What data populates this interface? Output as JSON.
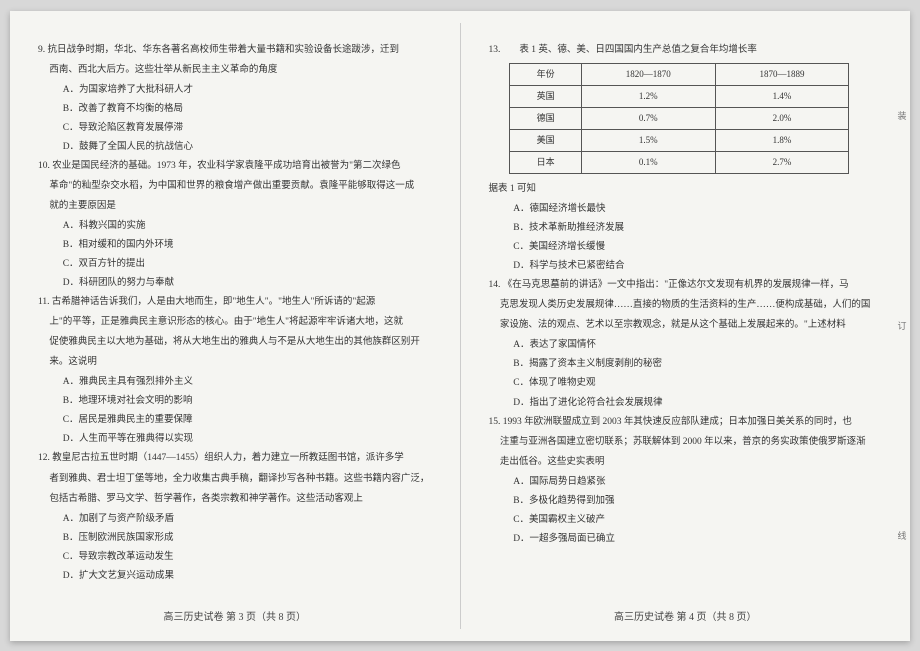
{
  "left": {
    "q9": {
      "stem": "9. 抗日战争时期，华北、华东各著名高校师生带着大量书籍和实验设备长途跋涉，迁到",
      "cont": "西南、西北大后方。这些壮举从新民主主义革命的角度",
      "A": "A．为国家培养了大批科研人才",
      "B": "B．改善了教育不均衡的格局",
      "C": "C．导致沦陷区教育发展停滞",
      "D": "D．鼓舞了全国人民的抗战信心"
    },
    "q10": {
      "stem": "10. 农业是国民经济的基础。1973 年，农业科学家袁隆平成功培育出被誉为\"第二次绿色",
      "cont1": "革命\"的籼型杂交水稻，为中国和世界的粮食增产做出重要贡献。袁隆平能够取得这一成",
      "cont2": "就的主要原因是",
      "A": "A．科教兴国的实施",
      "B": "B．相对缓和的国内外环境",
      "C": "C．双百方针的提出",
      "D": "D．科研团队的努力与奉献"
    },
    "q11": {
      "stem": "11. 古希腊神话告诉我们，人是由大地而生，即\"地生人\"。\"地生人\"所诉请的\"起源",
      "cont1": "上\"的平等，正是雅典民主意识形态的核心。由于\"地生人\"将起源牢牢诉诸大地，这就",
      "cont2": "促使雅典民主以大地为基础，将从大地生出的雅典人与不是从大地生出的其他族群区别开",
      "cont3": "来。这说明",
      "A": "A．雅典民主具有强烈排外主义",
      "B": "B．地理环境对社会文明的影响",
      "C": "C．居民是雅典民主的重要保障",
      "D": "D．人生而平等在雅典得以实现"
    },
    "q12": {
      "stem": "12. 教皇尼古拉五世时期（1447—1455）组织人力，着力建立一所教廷图书馆，派许多学",
      "cont1": "者到雅典、君士坦丁堡等地，全力收集古典手稿，翻译抄写各种书籍。这些书籍内容广泛，",
      "cont2": "包括古希腊、罗马文学、哲学著作，各类宗教和神学著作。这些活动客观上",
      "A": "A．加剧了与资产阶级矛盾",
      "B": "B．压制欧洲民族国家形成",
      "C": "C．导致宗教改革运动发生",
      "D": "D．扩大文艺复兴运动成果"
    },
    "footer": "高三历史试卷 第 3 页（共 8 页）"
  },
  "right": {
    "q13": {
      "stem": "13.",
      "title": "表 1 英、德、美、日四国国内生产总值之复合年均增长率",
      "table": {
        "columns": [
          "年份",
          "1820—1870",
          "1870—1889"
        ],
        "rows": [
          [
            "英国",
            "1.2%",
            "1.4%"
          ],
          [
            "德国",
            "0.7%",
            "2.0%"
          ],
          [
            "美国",
            "1.5%",
            "1.8%"
          ],
          [
            "日本",
            "0.1%",
            "2.7%"
          ]
        ]
      },
      "lead": "据表 1 可知",
      "A": "A．德国经济增长最快",
      "B": "B．技术革新助推经济发展",
      "C": "C．美国经济增长缓慢",
      "D": "D．科学与技术已紧密结合"
    },
    "q14": {
      "stem": "14. 《在马克思墓前的讲话》一文中指出：\"正像达尔文发现有机界的发展规律一样，马",
      "cont1": "克思发现人类历史发展规律……直接的物质的生活资料的生产……便构成基础，人们的国",
      "cont2": "家设施、法的观点、艺术以至宗教观念，就是从这个基础上发展起来的。\"上述材料",
      "A": "A．表达了家国情怀",
      "B": "B．揭露了资本主义制度剥削的秘密",
      "C": "C．体现了唯物史观",
      "D": "D．指出了进化论符合社会发展规律"
    },
    "q15": {
      "stem": "15. 1993 年欧洲联盟成立到 2003 年其快速反应部队建成；日本加强日美关系的同时，也",
      "cont1": "注重与亚洲各国建立密切联系；苏联解体到 2000 年以来，普京的务实政策使俄罗斯逐渐",
      "cont2": "走出低谷。这些史实表明",
      "A": "A．国际局势日趋紧张",
      "B": "B．多极化趋势得到加强",
      "C": "C．美国霸权主义破产",
      "D": "D．一超多强局面已确立"
    },
    "footer": "高三历史试卷 第 4 页（共 8 页）"
  },
  "binding": [
    "装",
    "订",
    "线"
  ]
}
